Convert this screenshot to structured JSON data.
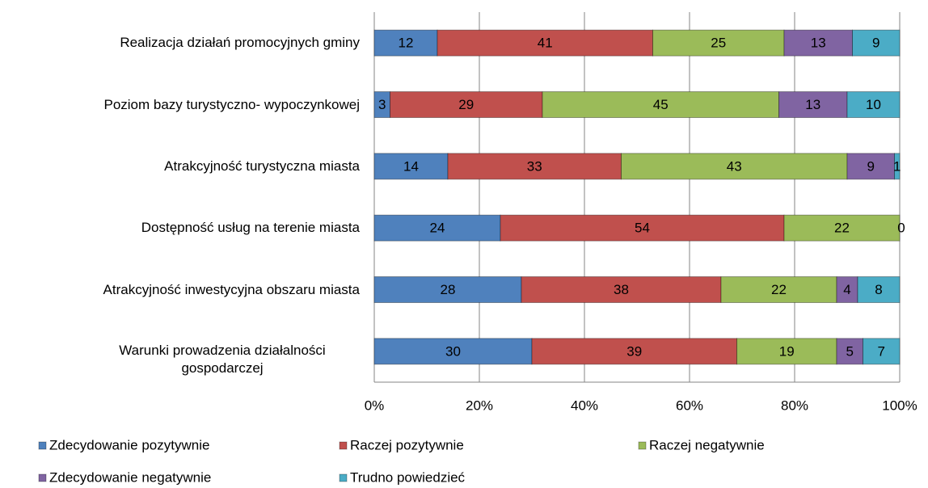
{
  "chart_data": {
    "type": "stacked_bar_horizontal",
    "categories": [
      "Realizacja działań promocyjnych gminy",
      "Poziom bazy turystyczno- wypoczynkowej",
      "Atrakcyjność turystyczna miasta",
      "Dostępność usług na terenie miasta",
      "Atrakcyjność inwestycyjna obszaru miasta",
      "Warunki prowadzenia działalności gospodarczej"
    ],
    "series": [
      {
        "name": "Zdecydowanie pozytywnie",
        "color": "#4f81bd",
        "values": [
          12,
          3,
          14,
          24,
          28,
          30
        ]
      },
      {
        "name": "Raczej pozytywnie",
        "color": "#c0504d",
        "values": [
          41,
          29,
          33,
          54,
          38,
          39
        ]
      },
      {
        "name": "Raczej negatywnie",
        "color": "#9bbb59",
        "values": [
          25,
          45,
          43,
          22,
          22,
          19
        ]
      },
      {
        "name": "Zdecydowanie negatywnie",
        "color": "#8064a2",
        "values": [
          13,
          13,
          9,
          0,
          4,
          5
        ]
      },
      {
        "name": "Trudno powiedzieć",
        "color": "#4bacc6",
        "values": [
          9,
          10,
          1,
          null,
          8,
          7
        ]
      }
    ],
    "xlim": [
      0,
      100
    ],
    "xticks": [
      {
        "value": 0,
        "label": "0%"
      },
      {
        "value": 20,
        "label": "20%"
      },
      {
        "value": 40,
        "label": "40%"
      },
      {
        "value": 60,
        "label": "60%"
      },
      {
        "value": 80,
        "label": "80%"
      },
      {
        "value": 100,
        "label": "100%"
      }
    ],
    "grid": true,
    "legend": "bottom"
  }
}
